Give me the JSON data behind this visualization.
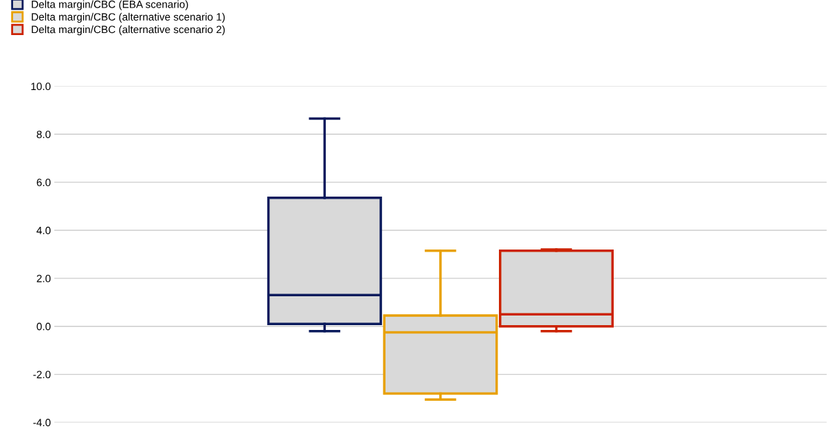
{
  "chart_data": {
    "type": "box",
    "categories": [
      null
    ],
    "legend": "top left",
    "grid": "y",
    "ylim": [
      -4,
      10
    ],
    "yticks": [
      {
        "value": -4,
        "label": "-4.0"
      },
      {
        "value": -2,
        "label": "-2.0"
      },
      {
        "value": 0,
        "label": "0.0"
      },
      {
        "value": 2,
        "label": "2.0"
      },
      {
        "value": 4,
        "label": "4.0"
      },
      {
        "value": 6,
        "label": "6.0"
      },
      {
        "value": 8,
        "label": "8.0"
      },
      {
        "value": 10,
        "label": "10.0"
      }
    ],
    "series": [
      {
        "name": "Delta margin/CBC (EBA scenario)",
        "color": "#0a1a5c",
        "boxes": [
          {
            "low": -0.2,
            "q1": 0.1,
            "median": 1.3,
            "q3": 5.35,
            "high": 8.65
          }
        ]
      },
      {
        "name": "Delta margin/CBC (alternative scenario 1)",
        "color": "#e8a000",
        "boxes": [
          {
            "low": -3.05,
            "q1": -2.8,
            "median": -0.25,
            "q3": 0.45,
            "high": 3.15
          }
        ]
      },
      {
        "name": "Delta margin/CBC (alternative scenario 2)",
        "color": "#cc2200",
        "boxes": [
          {
            "low": -0.2,
            "q1": 0.0,
            "median": 0.5,
            "q3": 3.15,
            "high": 3.2
          }
        ]
      }
    ]
  }
}
